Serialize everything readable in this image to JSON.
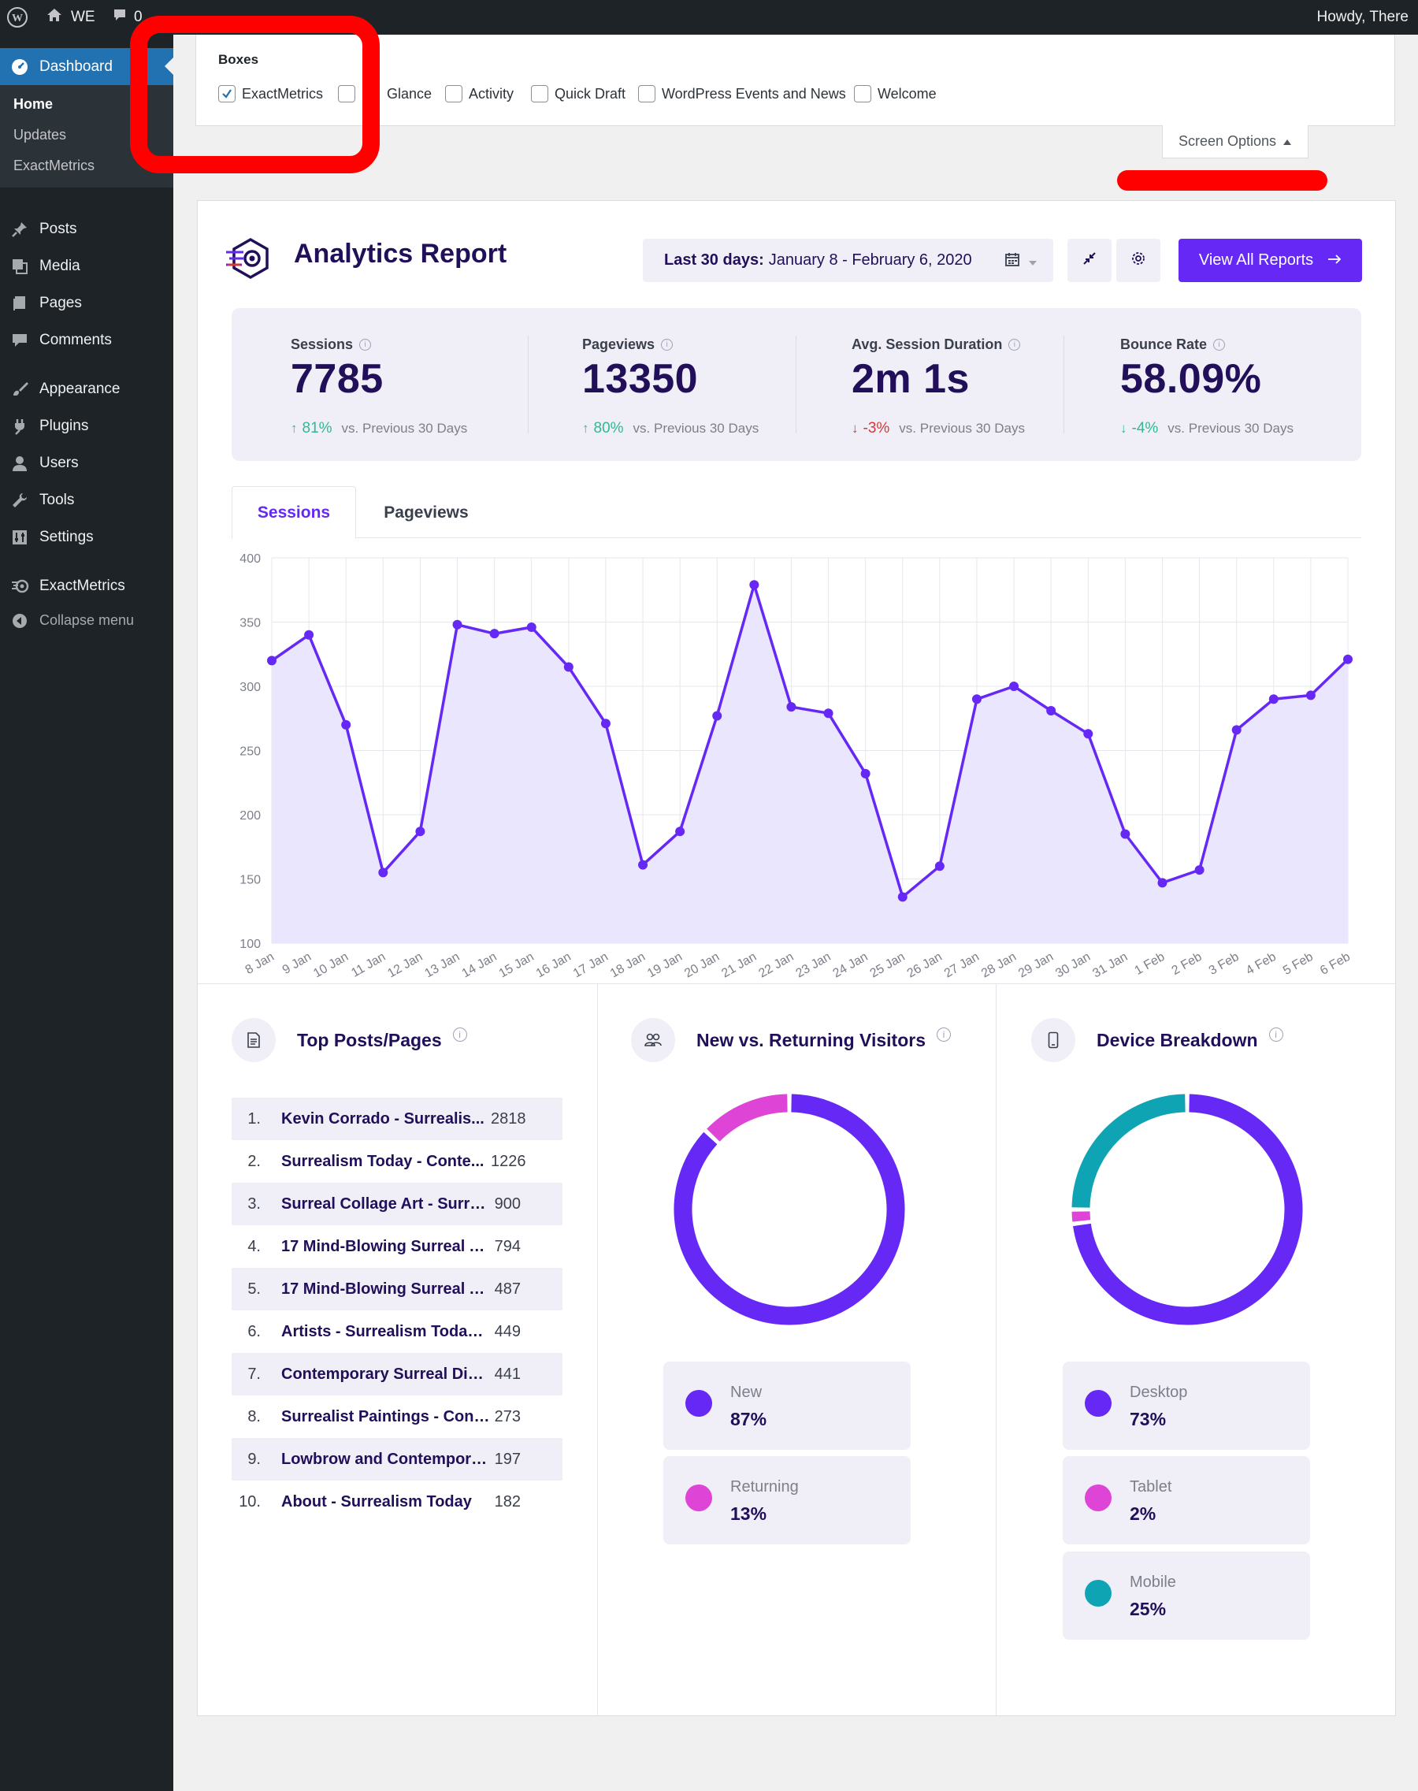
{
  "admin_bar": {
    "site_name": "WE",
    "comments_count": "0",
    "howdy": "Howdy, There"
  },
  "sidebar": {
    "dashboard": "Dashboard",
    "submenu": [
      "Home",
      "Updates",
      "ExactMetrics"
    ],
    "items": [
      "Posts",
      "Media",
      "Pages",
      "Comments",
      "Appearance",
      "Plugins",
      "Users",
      "Tools",
      "Settings",
      "ExactMetrics"
    ],
    "collapse": "Collapse menu"
  },
  "screen_options": {
    "title": "Boxes",
    "checkboxes": [
      {
        "label": "ExactMetrics",
        "checked": true
      },
      {
        "label": "Glance",
        "checked": false
      },
      {
        "label": "Activity",
        "checked": false
      },
      {
        "label": "Quick Draft",
        "checked": false
      },
      {
        "label": "WordPress Events and News",
        "checked": false
      },
      {
        "label": "Welcome",
        "checked": false
      }
    ],
    "tab_label": "Screen Options"
  },
  "report": {
    "title": "Analytics Report",
    "date_label": "Last 30 days:",
    "date_range": "January 8 - February 6, 2020",
    "view_all": "View All Reports"
  },
  "stats": [
    {
      "label": "Sessions",
      "value": "7785",
      "change": "81%",
      "direction": "up",
      "vs": "vs. Previous 30 Days"
    },
    {
      "label": "Pageviews",
      "value": "13350",
      "change": "80%",
      "direction": "up",
      "vs": "vs. Previous 30 Days"
    },
    {
      "label": "Avg. Session Duration",
      "value": "2m 1s",
      "change": "-3%",
      "direction": "down-red",
      "vs": "vs. Previous 30 Days"
    },
    {
      "label": "Bounce Rate",
      "value": "58.09%",
      "change": "-4%",
      "direction": "down-green",
      "vs": "vs. Previous 30 Days"
    }
  ],
  "tabs": [
    "Sessions",
    "Pageviews"
  ],
  "chart_data": {
    "type": "area",
    "x": [
      "8 Jan",
      "9 Jan",
      "10 Jan",
      "11 Jan",
      "12 Jan",
      "13 Jan",
      "14 Jan",
      "15 Jan",
      "16 Jan",
      "17 Jan",
      "18 Jan",
      "19 Jan",
      "20 Jan",
      "21 Jan",
      "22 Jan",
      "23 Jan",
      "24 Jan",
      "25 Jan",
      "26 Jan",
      "27 Jan",
      "28 Jan",
      "29 Jan",
      "30 Jan",
      "31 Jan",
      "1 Feb",
      "2 Feb",
      "3 Feb",
      "4 Feb",
      "5 Feb",
      "6 Feb"
    ],
    "series": [
      {
        "values": [
          320,
          340,
          270,
          155,
          187,
          348,
          341,
          346,
          315,
          271,
          161,
          187,
          277,
          379,
          284,
          279,
          232,
          136,
          160,
          290,
          300,
          281,
          263,
          185,
          147,
          157,
          266,
          290,
          293,
          321
        ]
      }
    ],
    "yticks": [
      400,
      350,
      300,
      250,
      200,
      150,
      100
    ],
    "ylim": [
      100,
      400
    ],
    "grid": true,
    "line_color": "#6528f5",
    "fill_color": "#eae6fd"
  },
  "top_posts": {
    "title": "Top Posts/Pages",
    "rows": [
      {
        "n": "1.",
        "title": "Kevin Corrado - Surrealis...",
        "count": "2818"
      },
      {
        "n": "2.",
        "title": "Surrealism Today - Conte...",
        "count": "1226"
      },
      {
        "n": "3.",
        "title": "Surreal Collage Art - Surre...",
        "count": "900"
      },
      {
        "n": "4.",
        "title": "17 Mind-Blowing Surreal A...",
        "count": "794"
      },
      {
        "n": "5.",
        "title": "17 Mind-Blowing Surreal A...",
        "count": "487"
      },
      {
        "n": "6.",
        "title": "Artists - Surrealism Today -...",
        "count": "449"
      },
      {
        "n": "7.",
        "title": "Contemporary Surreal Digit...",
        "count": "441"
      },
      {
        "n": "8.",
        "title": "Surrealist Paintings - Cont...",
        "count": "273"
      },
      {
        "n": "9.",
        "title": "Lowbrow and Contempora...",
        "count": "197"
      },
      {
        "n": "10.",
        "title": "About - Surrealism Today",
        "count": "182"
      }
    ]
  },
  "visitors": {
    "title": "New vs. Returning Visitors",
    "segments": [
      {
        "name": "New",
        "value": "87%",
        "pct": 87,
        "color": "#6528f5"
      },
      {
        "name": "Returning",
        "value": "13%",
        "pct": 13,
        "color": "#de45d6"
      }
    ]
  },
  "devices": {
    "title": "Device Breakdown",
    "segments": [
      {
        "name": "Desktop",
        "value": "73%",
        "pct": 73,
        "color": "#6528f5"
      },
      {
        "name": "Tablet",
        "value": "2%",
        "pct": 2,
        "color": "#de45d6"
      },
      {
        "name": "Mobile",
        "value": "25%",
        "pct": 25,
        "color": "#0fa4b4"
      }
    ]
  },
  "colors": {
    "accent": "#6528f5",
    "annotation": "#ff0000"
  }
}
